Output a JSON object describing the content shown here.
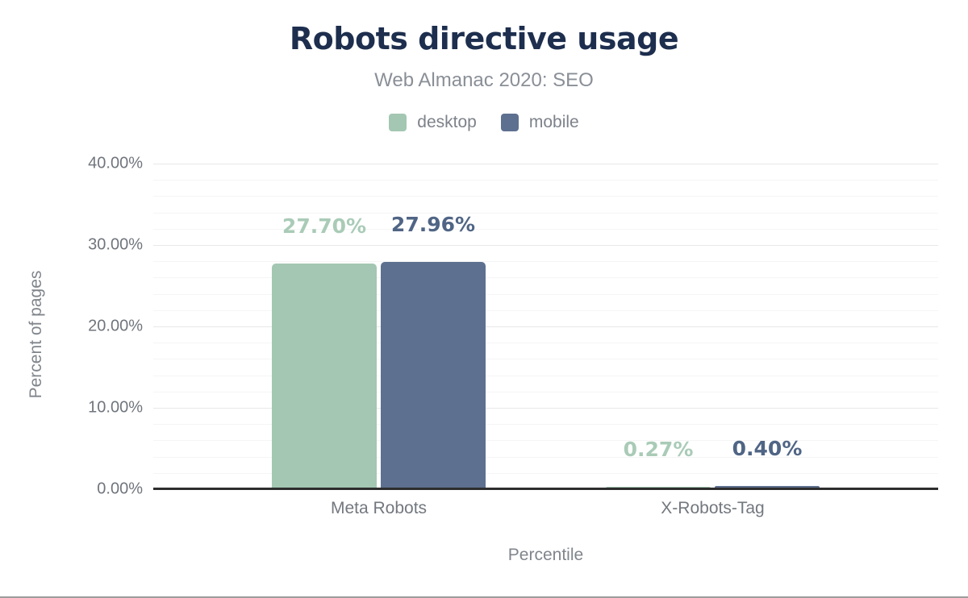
{
  "header": {
    "title": "Robots directive usage",
    "subtitle": "Web Almanac 2020: SEO"
  },
  "legend": {
    "position": "top",
    "items": [
      {
        "label": "desktop",
        "color": "#a3c7b2"
      },
      {
        "label": "mobile",
        "color": "#5e7090"
      }
    ]
  },
  "chart_data": {
    "type": "bar",
    "title": "Robots directive usage",
    "subtitle": "Web Almanac 2020: SEO",
    "categories": [
      "Meta Robots",
      "X-Robots-Tag"
    ],
    "series": [
      {
        "name": "desktop",
        "color": "#a3c7b2",
        "label_color": "#a9cbb7",
        "values": [
          27.7,
          0.27
        ],
        "value_labels": [
          "27.70%",
          "0.27%"
        ]
      },
      {
        "name": "mobile",
        "color": "#5e7090",
        "label_color": "#506585",
        "values": [
          27.96,
          0.4
        ],
        "value_labels": [
          "27.96%",
          "0.40%"
        ]
      }
    ],
    "xlabel": "Percentile",
    "ylabel": "Percent of pages",
    "ylim": [
      0,
      40
    ],
    "yticks": [
      {
        "value": 0,
        "label": "0.00%"
      },
      {
        "value": 10,
        "label": "10.00%"
      },
      {
        "value": 20,
        "label": "20.00%"
      },
      {
        "value": 30,
        "label": "30.00%"
      },
      {
        "value": 40,
        "label": "40.00%"
      }
    ],
    "minor_grid_step_percent": 2,
    "grid": "horizontal, major and minor lines",
    "legend_position": "top"
  },
  "colors": {
    "title_color": "#1d2e4e",
    "subtitle_color": "#8a8f97",
    "legend_text_color": "#7d828a",
    "tick_text_color": "#70757d",
    "category_text_color": "#73787f",
    "axis_title_color": "#80858c",
    "axis_line_color": "#2d2d2d",
    "major_grid_color": "#e8e8e8",
    "minor_grid_color": "#f5f5f5"
  }
}
